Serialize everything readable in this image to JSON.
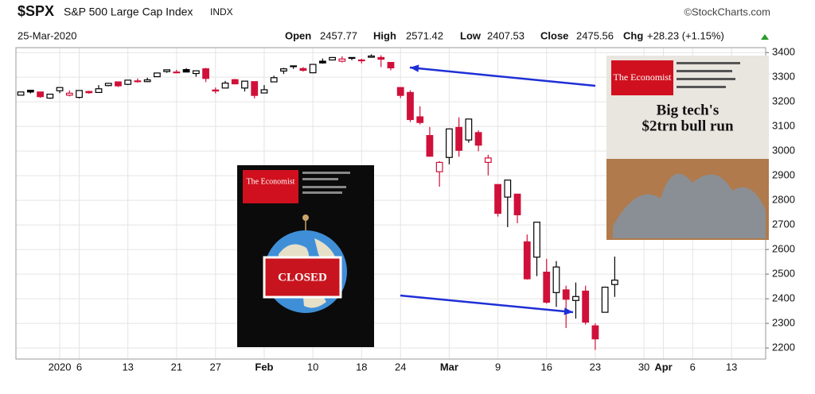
{
  "header": {
    "symbol": "$SPX",
    "name": "S&P 500 Large Cap Index",
    "exchange": "INDX",
    "date": "25-Mar-2020",
    "source": "©StockCharts.com",
    "quote": {
      "open_label": "Open",
      "open": 2457.77,
      "high_label": "High",
      "high": 2571.42,
      "low_label": "Low",
      "low": 2407.53,
      "close_label": "Close",
      "close": 2475.56,
      "change_label": "Chg",
      "change": "+28.23 (+1.15%)"
    }
  },
  "chart_data": {
    "type": "candlestick",
    "categories": [
      null,
      null,
      null,
      null,
      "2020",
      null,
      "6",
      null,
      null,
      null,
      null,
      "13",
      null,
      null,
      null,
      null,
      "21",
      null,
      null,
      null,
      "27",
      null,
      null,
      null,
      null,
      "Feb",
      null,
      null,
      null,
      null,
      "10",
      null,
      null,
      null,
      null,
      "18",
      null,
      null,
      null,
      "24",
      null,
      null,
      null,
      null,
      "Mar",
      null,
      null,
      null,
      null,
      "9",
      null,
      null,
      null,
      null,
      "16",
      null,
      null,
      null,
      null,
      "23",
      null,
      null,
      null,
      null,
      "30",
      null,
      "Apr",
      null,
      null,
      "6",
      null,
      null,
      null,
      "13",
      null,
      null,
      null
    ],
    "open": [
      3227,
      3247,
      3240,
      3215,
      3245,
      3227,
      3218,
      3242,
      3238,
      3266,
      3281,
      3271,
      3285,
      3282,
      3302,
      3323,
      3321,
      3331,
      3315,
      3334,
      3248,
      3256,
      3290,
      3256,
      3282,
      3236,
      3281,
      3325,
      3344,
      3335,
      3318,
      3365,
      3370,
      3365,
      3378,
      3370,
      3381,
      3380,
      3360,
      3258,
      3238,
      3139,
      3063,
      2916,
      2974,
      3096,
      3045,
      3075,
      2954,
      2864,
      2813,
      2825,
      2631,
      2569,
      2508,
      2425,
      2436,
      2393,
      2431,
      2290,
      2345,
      2457.77,
      null,
      null,
      null,
      null,
      null,
      null,
      null,
      null,
      null,
      null,
      null,
      null,
      null,
      null,
      null
    ],
    "high": [
      3240,
      3247,
      3240,
      3231,
      3258,
      3246,
      3247,
      3245,
      3268,
      3275,
      3283,
      3288,
      3295,
      3298,
      3317,
      3330,
      3330,
      3337,
      3326,
      3338,
      3258,
      3285,
      3293,
      3285,
      3282,
      3268,
      3306,
      3338,
      3347,
      3341,
      3352,
      3376,
      3381,
      3385,
      3381,
      3375,
      3393,
      3389,
      3360,
      3259,
      3247,
      3182,
      3098,
      2959,
      3091,
      3137,
      3130,
      3084,
      2985,
      2863,
      2883,
      2825,
      2661,
      2711,
      2562,
      2553,
      2453,
      2466,
      2453,
      2300,
      2449,
      2571.42,
      null,
      null,
      null,
      null,
      null,
      null,
      null,
      null,
      null,
      null,
      null,
      null,
      null,
      null,
      null
    ],
    "low": [
      3227,
      3234,
      3216,
      3212,
      3235,
      3222,
      3214,
      3233,
      3236,
      3263,
      3260,
      3268,
      3278,
      3280,
      3302,
      3318,
      3316,
      3321,
      3302,
      3280,
      3234,
      3256,
      3271,
      3242,
      3214,
      3235,
      3281,
      3313,
      3334,
      3323,
      3317,
      3355,
      3369,
      3360,
      3369,
      3356,
      3379,
      3341,
      3328,
      3215,
      3118,
      3108,
      2977,
      2855,
      2946,
      2977,
      3034,
      2999,
      2901,
      2734,
      2691,
      2707,
      2478,
      2492,
      2380,
      2367,
      2281,
      2319,
      2295,
      2192,
      2345,
      2407.53,
      null,
      null,
      null,
      null,
      null,
      null,
      null,
      null,
      null,
      null,
      null,
      null,
      null,
      null,
      null
    ],
    "close": [
      3240,
      3240,
      3221,
      3231,
      3258,
      3235,
      3246,
      3237,
      3253,
      3275,
      3265,
      3288,
      3283,
      3289,
      3317,
      3330,
      3321,
      3321,
      3326,
      3295,
      3244,
      3276,
      3273,
      3284,
      3226,
      3249,
      3298,
      3334,
      3346,
      3328,
      3352,
      3358,
      3380,
      3374,
      3380,
      3370,
      3386,
      3373,
      3338,
      3226,
      3128,
      3116,
      2979,
      2954,
      3090,
      3003,
      3130,
      3024,
      2972,
      2747,
      2882,
      2741,
      2481,
      2711,
      2386,
      2529,
      2398,
      2409,
      2305,
      2237,
      2447,
      2475.56,
      null,
      null,
      null,
      null,
      null,
      null,
      null,
      null,
      null,
      null,
      null,
      null,
      null,
      null,
      null
    ],
    "up_color": "#000000",
    "down_color": "#d0103a",
    "ylim": [
      2155,
      3420
    ],
    "yticks": [
      2200,
      2300,
      2400,
      2500,
      2600,
      2700,
      2800,
      2900,
      3000,
      3100,
      3200,
      3300,
      3400
    ],
    "grid": true,
    "annotations": {
      "left_cover": {
        "masthead": "The Economist",
        "sign": "CLOSED"
      },
      "right_cover": {
        "masthead": "The Economist",
        "headline_1": "Big tech's",
        "headline_2": "$2trn bull run"
      },
      "arrow_color": "#1f2fd6"
    }
  }
}
